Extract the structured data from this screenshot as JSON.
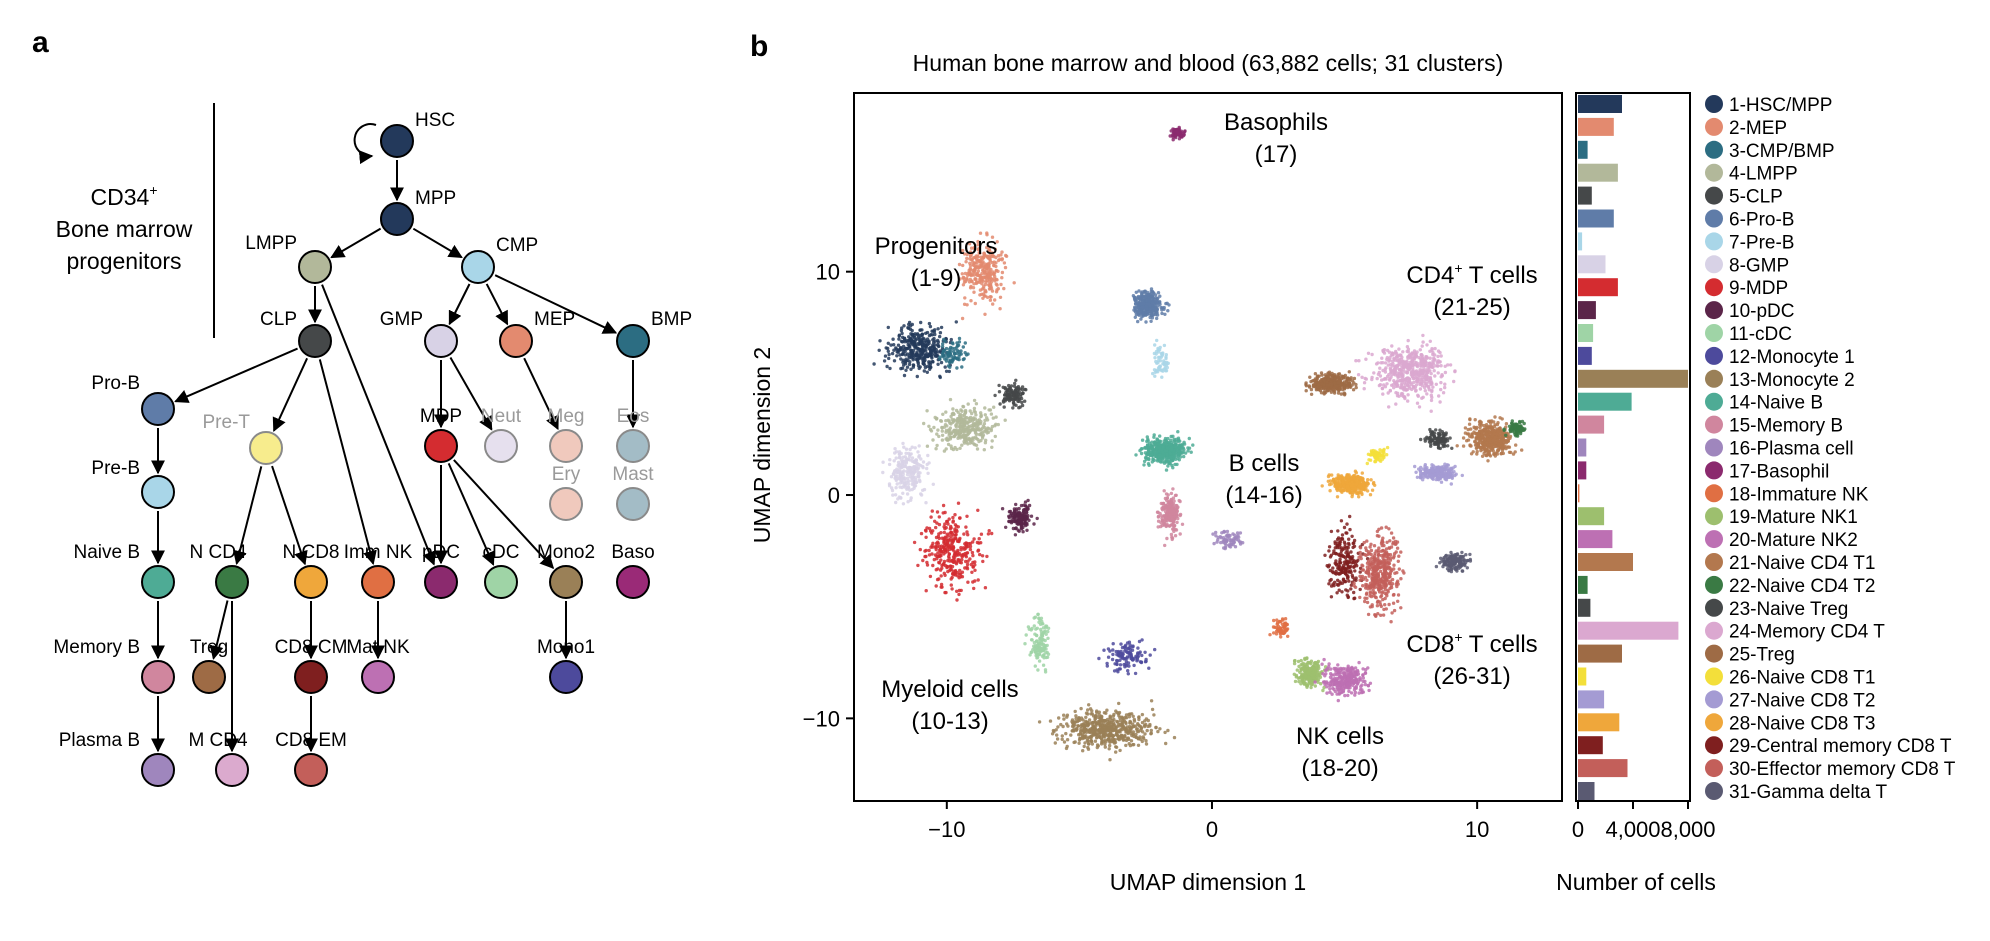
{
  "panel_labels": {
    "a": "a",
    "b": "b"
  },
  "tree": {
    "title_line1": "CD34",
    "title_sup": "+",
    "title_line2": "Bone marrow",
    "title_line3": "progenitors",
    "nodes": [
      {
        "id": "HSC",
        "label": "HSC",
        "color": "#23395b",
        "faded": false
      },
      {
        "id": "MPP",
        "label": "MPP",
        "color": "#23395b",
        "faded": false
      },
      {
        "id": "LMPP",
        "label": "LMPP",
        "color": "#b2b89a",
        "faded": false
      },
      {
        "id": "CMP",
        "label": "CMP",
        "color": "#a9d6e8",
        "faded": false
      },
      {
        "id": "CLP",
        "label": "CLP",
        "color": "#454849",
        "faded": false
      },
      {
        "id": "GMP",
        "label": "GMP",
        "color": "#d8d2e6",
        "faded": false
      },
      {
        "id": "MEP",
        "label": "MEP",
        "color": "#e38a6f",
        "faded": false
      },
      {
        "id": "BMP",
        "label": "BMP",
        "color": "#2c6d82",
        "faded": false
      },
      {
        "id": "ProB",
        "label": "Pro-B",
        "color": "#5f7ca8",
        "faded": false
      },
      {
        "id": "PreT",
        "label": "Pre-T",
        "color": "#f7ec8d",
        "faded": true
      },
      {
        "id": "MDP",
        "label": "MDP",
        "color": "#d42c30",
        "faded": false
      },
      {
        "id": "Neut",
        "label": "Neut",
        "color": "#e6e0ee",
        "faded": true
      },
      {
        "id": "Meg",
        "label": "Meg",
        "color": "#f0c9bd",
        "faded": true
      },
      {
        "id": "Eos",
        "label": "Eos",
        "color": "#a3bcc6",
        "faded": true
      },
      {
        "id": "PreB",
        "label": "Pre-B",
        "color": "#a9d6e8",
        "faded": false
      },
      {
        "id": "Ery",
        "label": "Ery",
        "color": "#f0c9bd",
        "faded": true
      },
      {
        "id": "Mast",
        "label": "Mast",
        "color": "#a3bcc6",
        "faded": true
      },
      {
        "id": "NaiveB",
        "label": "Naive B",
        "color": "#4eab95",
        "faded": false
      },
      {
        "id": "NCD4",
        "label": "N CD4",
        "color": "#3a7a44",
        "faded": false
      },
      {
        "id": "NCD8",
        "label": "N CD8",
        "color": "#efa73b",
        "faded": false
      },
      {
        "id": "ImmNK",
        "label": "Imm NK",
        "color": "#e06f43",
        "faded": false
      },
      {
        "id": "pDC",
        "label": "pDC",
        "color": "#8b2a6e",
        "faded": false
      },
      {
        "id": "cDC",
        "label": "cDC",
        "color": "#9fd4a6",
        "faded": false
      },
      {
        "id": "Mono2",
        "label": "Mono2",
        "color": "#9a8057",
        "faded": false
      },
      {
        "id": "Baso",
        "label": "Baso",
        "color": "#9a2a77",
        "faded": false
      },
      {
        "id": "MemoryB",
        "label": "Memory B",
        "color": "#d0869e",
        "faded": false
      },
      {
        "id": "Treg",
        "label": "Treg",
        "color": "#9e6b45",
        "faded": false
      },
      {
        "id": "CD8CM",
        "label": "CD8 CM",
        "color": "#7f1f1f",
        "faded": false
      },
      {
        "id": "MatNK",
        "label": "Mat NK",
        "color": "#bd70b3",
        "faded": false
      },
      {
        "id": "Mono1",
        "label": "Mono1",
        "color": "#4d4a9c",
        "faded": false
      },
      {
        "id": "PlasmaB",
        "label": "Plasma B",
        "color": "#9f86bd",
        "faded": false
      },
      {
        "id": "MCD4",
        "label": "M CD4",
        "color": "#dbaace",
        "faded": false
      },
      {
        "id": "CD8EM",
        "label": "CD8 EM",
        "color": "#c35f5a",
        "faded": false
      }
    ],
    "edges": [
      [
        "HSC",
        "MPP"
      ],
      [
        "MPP",
        "LMPP"
      ],
      [
        "MPP",
        "CMP"
      ],
      [
        "LMPP",
        "CLP"
      ],
      [
        "LMPP",
        "pDC"
      ],
      [
        "CMP",
        "GMP"
      ],
      [
        "CMP",
        "MEP"
      ],
      [
        "CMP",
        "BMP"
      ],
      [
        "CLP",
        "ProB"
      ],
      [
        "CLP",
        "PreT"
      ],
      [
        "CLP",
        "ImmNK"
      ],
      [
        "GMP",
        "MDP"
      ],
      [
        "GMP",
        "Neut"
      ],
      [
        "MEP",
        "Meg"
      ],
      [
        "BMP",
        "Eos"
      ],
      [
        "ProB",
        "PreB"
      ],
      [
        "PreT",
        "NCD4"
      ],
      [
        "PreT",
        "NCD8"
      ],
      [
        "MDP",
        "pDC"
      ],
      [
        "MDP",
        "cDC"
      ],
      [
        "MDP",
        "Mono2"
      ],
      [
        "PreB",
        "NaiveB"
      ],
      [
        "NaiveB",
        "MemoryB"
      ],
      [
        "NCD4",
        "Treg"
      ],
      [
        "NCD4",
        "MCD4"
      ],
      [
        "NCD8",
        "CD8CM"
      ],
      [
        "ImmNK",
        "MatNK"
      ],
      [
        "Mono2",
        "Mono1"
      ],
      [
        "MemoryB",
        "PlasmaB"
      ],
      [
        "CD8CM",
        "CD8EM"
      ]
    ]
  },
  "umap": {
    "title": "Human bone marrow and blood (63,882 cells; 31 clusters)",
    "xlabel": "UMAP dimension 1",
    "ylabel": "UMAP dimension 2",
    "xticks": [
      "−10",
      "0",
      "10"
    ],
    "yticks": [
      "10",
      "0",
      "−10"
    ],
    "annotations": [
      {
        "line1": "Basophils",
        "line2": "(17)"
      },
      {
        "line1": "Progenitors",
        "line2": "(1-9)"
      },
      {
        "line1": "CD4",
        "sup": "+",
        "rest": " T cells",
        "line2": "(21-25)"
      },
      {
        "line1": "B cells",
        "line2": "(14-16)"
      },
      {
        "line1": "CD8",
        "sup": "+",
        "rest": " T cells",
        "line2": "(26-31)"
      },
      {
        "line1": "Myeloid cells",
        "line2": "(10-13)"
      },
      {
        "line1": "NK cells",
        "line2": "(18-20)"
      }
    ]
  },
  "bars": {
    "xlabel": "Number of cells",
    "xticks": [
      "0",
      "4,000",
      "8,000"
    ]
  },
  "chart_data": [
    {
      "type": "scatter",
      "title": "Human bone marrow and blood (63,882 cells; 31 clusters)",
      "xlabel": "UMAP dimension 1",
      "ylabel": "UMAP dimension 2",
      "xlim": [
        -13.5,
        13.2
      ],
      "ylim": [
        -13.7,
        18.0
      ],
      "grid": false,
      "clusters": [
        {
          "id": "1",
          "cx": -11,
          "cy": 6.5,
          "sx": 1.5,
          "sy": 1.3
        },
        {
          "id": "2",
          "cx": -8.6,
          "cy": 10,
          "sx": 1.0,
          "sy": 1.6
        },
        {
          "id": "3",
          "cx": -9.8,
          "cy": 6.3,
          "sx": 0.7,
          "sy": 0.8
        },
        {
          "id": "4",
          "cx": -9.3,
          "cy": 3,
          "sx": 1.4,
          "sy": 1.1
        },
        {
          "id": "5",
          "cx": -7.5,
          "cy": 4.5,
          "sx": 0.6,
          "sy": 0.6
        },
        {
          "id": "6",
          "cx": -2.4,
          "cy": 8.5,
          "sx": 0.7,
          "sy": 0.8
        },
        {
          "id": "7",
          "cx": -1.9,
          "cy": 6,
          "sx": 0.4,
          "sy": 0.9
        },
        {
          "id": "8",
          "cx": -11.5,
          "cy": 1,
          "sx": 0.9,
          "sy": 1.5
        },
        {
          "id": "9",
          "cx": -9.8,
          "cy": -2.5,
          "sx": 1.3,
          "sy": 2.2
        },
        {
          "id": "10",
          "cx": -7.2,
          "cy": -1,
          "sx": 0.6,
          "sy": 0.8
        },
        {
          "id": "11",
          "cx": -6.5,
          "cy": -6.5,
          "sx": 0.5,
          "sy": 1.5
        },
        {
          "id": "12",
          "cx": -3.2,
          "cy": -7.2,
          "sx": 1.0,
          "sy": 0.8
        },
        {
          "id": "13",
          "cx": -4,
          "cy": -10.5,
          "sx": 2.4,
          "sy": 1.0
        },
        {
          "id": "14",
          "cx": -1.8,
          "cy": 2,
          "sx": 0.9,
          "sy": 0.7
        },
        {
          "id": "15",
          "cx": -1.6,
          "cy": -0.8,
          "sx": 0.5,
          "sy": 1.1
        },
        {
          "id": "16",
          "cx": 0.6,
          "cy": -2,
          "sx": 0.7,
          "sy": 0.5
        },
        {
          "id": "17",
          "cx": -1.3,
          "cy": 16.2,
          "sx": 0.3,
          "sy": 0.3
        },
        {
          "id": "18",
          "cx": 2.6,
          "cy": -6,
          "sx": 0.4,
          "sy": 0.5
        },
        {
          "id": "19",
          "cx": 3.7,
          "cy": -8,
          "sx": 0.6,
          "sy": 0.8
        },
        {
          "id": "20",
          "cx": 5,
          "cy": -8.3,
          "sx": 1.0,
          "sy": 0.8
        },
        {
          "id": "21",
          "cx": 10.5,
          "cy": 2.5,
          "sx": 1.0,
          "sy": 1.0
        },
        {
          "id": "22",
          "cx": 11.5,
          "cy": 3,
          "sx": 0.4,
          "sy": 0.4
        },
        {
          "id": "23",
          "cx": 8.5,
          "cy": 2.5,
          "sx": 0.6,
          "sy": 0.5
        },
        {
          "id": "24",
          "cx": 7.5,
          "cy": 5.5,
          "sx": 1.7,
          "sy": 1.4
        },
        {
          "id": "25",
          "cx": 4.5,
          "cy": 5,
          "sx": 1.0,
          "sy": 0.5
        },
        {
          "id": "26",
          "cx": 6.2,
          "cy": 1.8,
          "sx": 0.4,
          "sy": 0.4
        },
        {
          "id": "27",
          "cx": 8.5,
          "cy": 1,
          "sx": 0.9,
          "sy": 0.4
        },
        {
          "id": "28",
          "cx": 5.2,
          "cy": 0.5,
          "sx": 0.9,
          "sy": 0.5
        },
        {
          "id": "29",
          "cx": 5,
          "cy": -3,
          "sx": 0.8,
          "sy": 2.0
        },
        {
          "id": "30",
          "cx": 6.3,
          "cy": -3.5,
          "sx": 0.9,
          "sy": 2.0
        },
        {
          "id": "31",
          "cx": 9.2,
          "cy": -3,
          "sx": 0.7,
          "sy": 0.5
        }
      ]
    },
    {
      "type": "bar",
      "orientation": "horizontal",
      "xlabel": "Number of cells",
      "xlim": [
        0,
        8000
      ],
      "categories": [
        "1-HSC/MPP",
        "2-MEP",
        "3-CMP/BMP",
        "4-LMPP",
        "5-CLP",
        "6-Pro-B",
        "7-Pre-B",
        "8-GMP",
        "9-MDP",
        "10-pDC",
        "11-cDC",
        "12-Monocyte 1",
        "13-Monocyte 2",
        "14-Naive B",
        "15-Memory B",
        "16-Plasma cell",
        "17-Basophil",
        "18-Immature NK",
        "19-Mature NK1",
        "20-Mature NK2",
        "21-Naive CD4 T1",
        "22-Naive CD4 T2",
        "23-Naive Treg",
        "24-Memory CD4 T",
        "25-Treg",
        "26-Naive CD8 T1",
        "27-Naive CD8 T2",
        "28-Naive CD8 T3",
        "29-Central memory CD8 T",
        "30-Effector memory CD8 T",
        "31-Gamma delta T"
      ],
      "values": [
        3200,
        2600,
        700,
        2900,
        1000,
        2600,
        300,
        2000,
        2900,
        1300,
        1100,
        1000,
        8000,
        3900,
        1900,
        600,
        600,
        100,
        1900,
        2500,
        4000,
        700,
        900,
        7300,
        3200,
        600,
        1900,
        3000,
        1800,
        3600,
        1200
      ],
      "colors": [
        "#23395b",
        "#e38a6f",
        "#2c6d82",
        "#b2b89a",
        "#454849",
        "#5f7ca8",
        "#a9d6e8",
        "#d8d2e6",
        "#d42c30",
        "#5b2549",
        "#9fd4a6",
        "#4d4a9c",
        "#9a8057",
        "#4eab95",
        "#d0869e",
        "#9f86bd",
        "#8b2a6e",
        "#e06f43",
        "#9dbf6e",
        "#bd70b3",
        "#b3784e",
        "#3a7a44",
        "#454849",
        "#dba8d0",
        "#9e6b45",
        "#f3df3a",
        "#a49bd3",
        "#efa73b",
        "#7f1f1f",
        "#c35f5a",
        "#5a5a72"
      ]
    }
  ]
}
